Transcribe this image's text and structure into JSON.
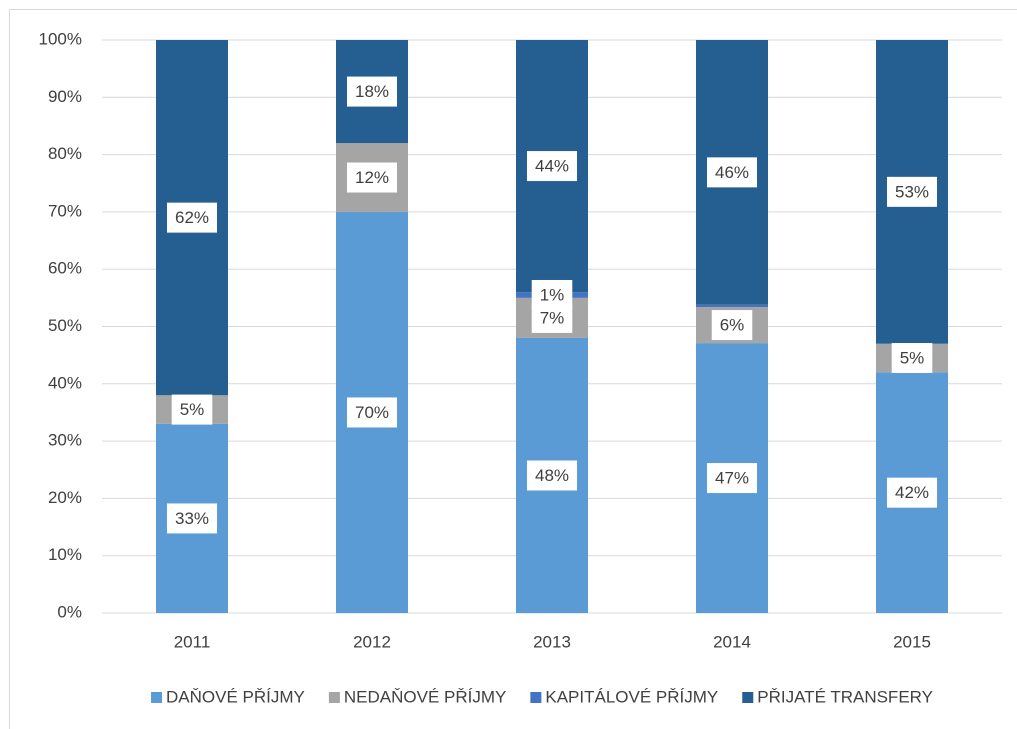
{
  "chart_data": {
    "type": "stacked_bar",
    "categories": [
      "2011",
      "2012",
      "2013",
      "2014",
      "2015"
    ],
    "series": [
      {
        "name": "DAŇOVÉ PŘÍJMY",
        "color": "#5b9bd5",
        "values": [
          33,
          70,
          48,
          47.1,
          42
        ],
        "value_labels": [
          "33%",
          "70%",
          "48%",
          "47%",
          "42%"
        ]
      },
      {
        "name": "NEDAŇOVÉ PŘÍJMY",
        "color": "#a5a5a5",
        "values": [
          5,
          12,
          7,
          6.3,
          5
        ],
        "value_labels": [
          "5%",
          "12%",
          "7%",
          "6%",
          "5%"
        ]
      },
      {
        "name": "KAPITÁLOVÉ PŘÍJMY",
        "color": "#4472c4",
        "values": [
          0,
          0,
          1,
          0.4,
          0
        ],
        "value_labels": [
          null,
          null,
          "1%",
          null,
          null
        ]
      },
      {
        "name": "PŘIJATÉ TRANSFERY",
        "color": "#255e91",
        "values": [
          62,
          18,
          44,
          46.2,
          53
        ],
        "value_labels": [
          "62%",
          "18%",
          "44%",
          "46%",
          "53%"
        ]
      }
    ],
    "ylim": [
      0,
      100
    ],
    "yticks": [
      {
        "value": 0,
        "label": "0%"
      },
      {
        "value": 10,
        "label": "10%"
      },
      {
        "value": 20,
        "label": "20%"
      },
      {
        "value": 30,
        "label": "30%"
      },
      {
        "value": 40,
        "label": "40%"
      },
      {
        "value": 50,
        "label": "50%"
      },
      {
        "value": 60,
        "label": "60%"
      },
      {
        "value": 70,
        "label": "70%"
      },
      {
        "value": 80,
        "label": "80%"
      },
      {
        "value": 90,
        "label": "90%"
      },
      {
        "value": 100,
        "label": "100%"
      }
    ],
    "grid": true,
    "legend": "bottom"
  }
}
